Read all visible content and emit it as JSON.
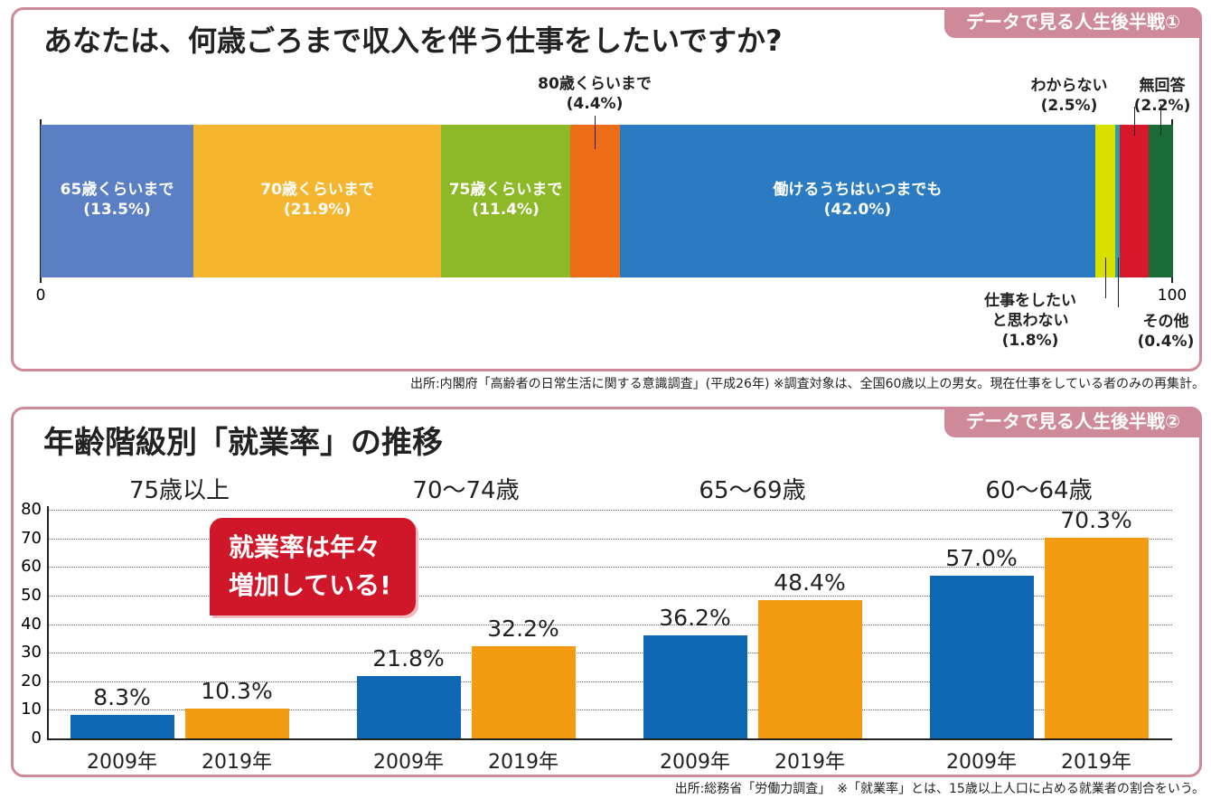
{
  "chart_data": [
    {
      "type": "stacked_bar",
      "title": "あなたは、何歳ごろまで収入を伴う仕事をしたいですか?",
      "badge": "データで見る人生後半戦①",
      "series": [
        {
          "name": "65歳くらいまで",
          "color": "#5b7fc4",
          "values": [
            13.5
          ],
          "value_labels": [
            "(13.5%)"
          ]
        },
        {
          "name": "70歳くらいまで",
          "color": "#f6b52e",
          "values": [
            21.9
          ],
          "value_labels": [
            "(21.9%)"
          ]
        },
        {
          "name": "75歳くらいまで",
          "color": "#8db827",
          "values": [
            11.4
          ],
          "value_labels": [
            "(11.4%)"
          ]
        },
        {
          "name": "80歳くらいまで",
          "color": "#ec6c18",
          "values": [
            4.4
          ],
          "value_labels": [
            "(4.4%)"
          ]
        },
        {
          "name": "働けるうちはいつまでも",
          "color": "#2b7bc2",
          "values": [
            42.0
          ],
          "value_labels": [
            "(42.0%)"
          ]
        },
        {
          "name": "仕事をしたいと思わない",
          "color": "#d9e000",
          "values": [
            1.8
          ],
          "value_labels": [
            "(1.8%)"
          ]
        },
        {
          "name": "その他",
          "color": "#2aa1a8",
          "values": [
            0.4
          ],
          "value_labels": [
            "(0.4%)"
          ]
        },
        {
          "name": "わからない",
          "color": "#d7182a",
          "values": [
            2.5
          ],
          "value_labels": [
            "(2.5%)"
          ]
        },
        {
          "name": "無回答",
          "color": "#1a6b36",
          "values": [
            2.2
          ],
          "value_labels": [
            "(2.2%)"
          ]
        }
      ],
      "xlim": [
        0,
        100
      ],
      "xticks": [
        0,
        100
      ],
      "source": "出所:内閣府「高齢者の日常生活に関する意識調査」(平成26年) ※調査対象は、全国60歳以上の男女。現在仕事をしている者のみの再集計。"
    },
    {
      "type": "bar",
      "title": "年齢階級別「就業率」の推移",
      "badge": "データで見る人生後半戦②",
      "categories": [
        "75歳以上",
        "70〜74歳",
        "65〜69歳",
        "60〜64歳"
      ],
      "series": [
        {
          "name": "2009年",
          "color": "#1068b4",
          "values": [
            8.3,
            21.8,
            36.2,
            57.0
          ],
          "value_labels": [
            "8.3%",
            "21.8%",
            "36.2%",
            "57.0%"
          ]
        },
        {
          "name": "2019年",
          "color": "#f39c12",
          "values": [
            10.3,
            32.2,
            48.4,
            70.3
          ],
          "value_labels": [
            "10.3%",
            "32.2%",
            "48.4%",
            "70.3%"
          ]
        }
      ],
      "ylim": [
        0,
        80
      ],
      "yticks": [
        0,
        10,
        20,
        30,
        40,
        50,
        60,
        70,
        80
      ],
      "grid": true,
      "annotation": "就業率は年々増加している!",
      "source": "出所:総務省「労働力調査」　※「就業率」とは、15歳以上人口に占める就業者の割合をいう。"
    }
  ]
}
